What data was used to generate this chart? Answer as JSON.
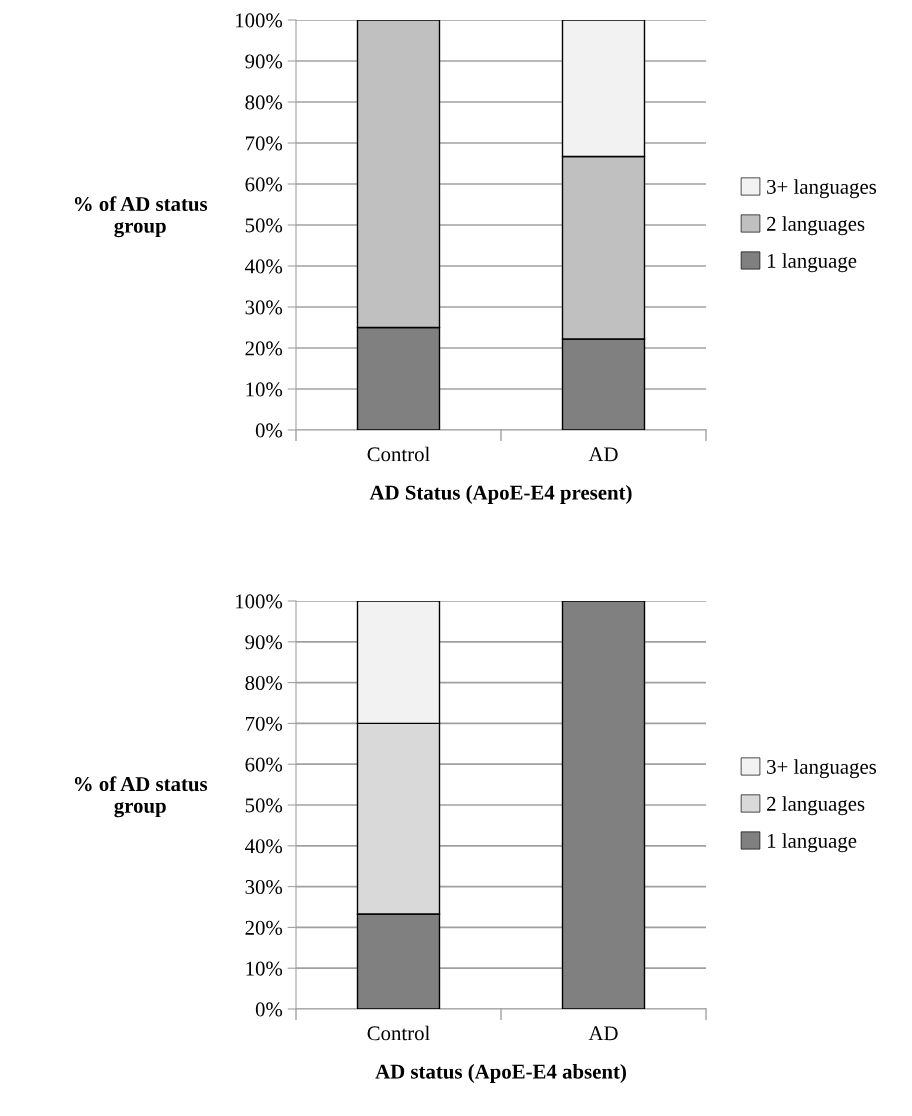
{
  "chart_data": [
    {
      "type": "bar",
      "stacked": true,
      "xlabel": "AD Status (ApoE-E4 present)",
      "ylabel": "% of AD status group",
      "categories": [
        "Control",
        "AD"
      ],
      "series": [
        {
          "name": "1 language",
          "color": "#808080",
          "values": [
            25,
            22.2
          ]
        },
        {
          "name": "2 languages",
          "color": "#c0c0c0",
          "values": [
            75,
            44.5
          ]
        },
        {
          "name": "3+ languages",
          "color": "#f2f2f2",
          "values": [
            0,
            33.3
          ]
        }
      ],
      "ylim": [
        0,
        100
      ],
      "yticks": [
        {
          "value": 0,
          "label": "0%"
        },
        {
          "value": 10,
          "label": "10%"
        },
        {
          "value": 20,
          "label": "20%"
        },
        {
          "value": 30,
          "label": "30%"
        },
        {
          "value": 40,
          "label": "40%"
        },
        {
          "value": 50,
          "label": "50%"
        },
        {
          "value": 60,
          "label": "60%"
        },
        {
          "value": 70,
          "label": "70%"
        },
        {
          "value": 80,
          "label": "80%"
        },
        {
          "value": 90,
          "label": "90%"
        },
        {
          "value": 100,
          "label": "100%"
        }
      ],
      "grid": "y",
      "legend": "right"
    },
    {
      "type": "bar",
      "stacked": true,
      "xlabel": "AD status (ApoE-E4 absent)",
      "ylabel": "% of AD status group",
      "categories": [
        "Control",
        "AD"
      ],
      "series": [
        {
          "name": "1 language",
          "color": "#808080",
          "values": [
            23.3,
            100
          ]
        },
        {
          "name": "2 languages",
          "color": "#d9d9d9",
          "values": [
            46.7,
            0
          ]
        },
        {
          "name": "3+ languages",
          "color": "#f2f2f2",
          "values": [
            30,
            0
          ]
        }
      ],
      "ylim": [
        0,
        100
      ],
      "yticks": [
        {
          "value": 0,
          "label": "0%"
        },
        {
          "value": 10,
          "label": "10%"
        },
        {
          "value": 20,
          "label": "20%"
        },
        {
          "value": 30,
          "label": "30%"
        },
        {
          "value": 40,
          "label": "40%"
        },
        {
          "value": 50,
          "label": "50%"
        },
        {
          "value": 60,
          "label": "60%"
        },
        {
          "value": 70,
          "label": "70%"
        },
        {
          "value": 80,
          "label": "80%"
        },
        {
          "value": 90,
          "label": "90%"
        },
        {
          "value": 100,
          "label": "100%"
        }
      ],
      "grid": "y",
      "legend": "right"
    }
  ]
}
